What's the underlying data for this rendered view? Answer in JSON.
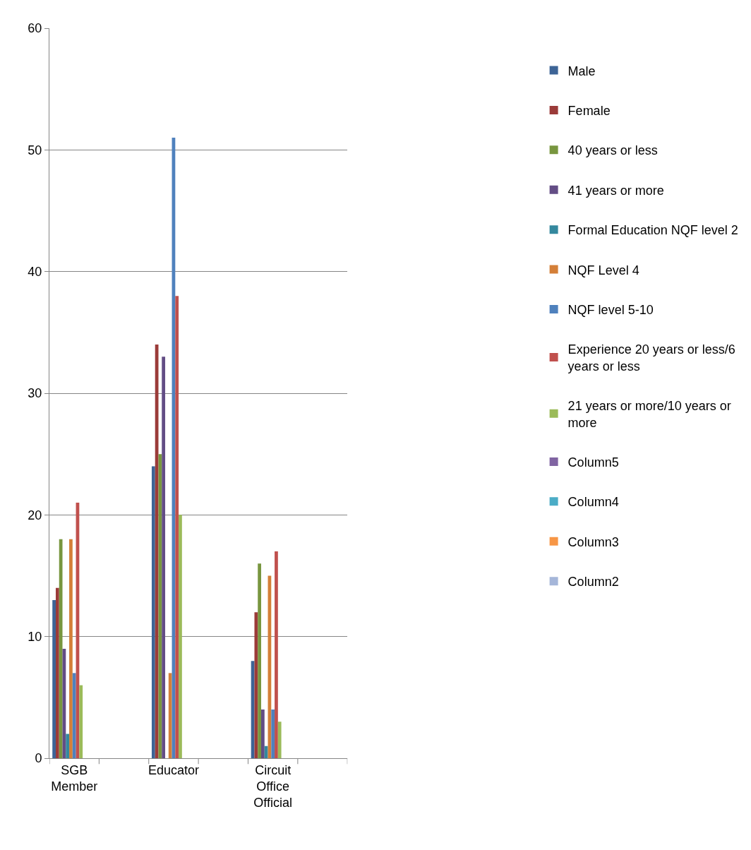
{
  "chart_data": {
    "type": "bar",
    "categories": [
      "SGB Member",
      null,
      "Educator",
      null,
      "Circuit Office Official",
      null
    ],
    "ylim": [
      0,
      60
    ],
    "yticks": [
      0,
      10,
      20,
      30,
      40,
      50,
      60
    ],
    "grid": "y",
    "legend": "right",
    "series": [
      {
        "name": "Male",
        "color": "#3d6496",
        "values": [
          13,
          null,
          24,
          null,
          8,
          null
        ]
      },
      {
        "name": "Female",
        "color": "#9b3b39",
        "values": [
          14,
          null,
          34,
          null,
          12,
          null
        ]
      },
      {
        "name": "40 years or less",
        "color": "#78963f",
        "values": [
          18,
          null,
          25,
          null,
          16,
          null
        ]
      },
      {
        "name": "41 years or more",
        "color": "#634d85",
        "values": [
          9,
          null,
          33,
          null,
          4,
          null
        ]
      },
      {
        "name": "Formal Education NQF level 2",
        "color": "#34889e",
        "values": [
          2,
          null,
          null,
          null,
          1,
          null
        ]
      },
      {
        "name": "NQF Level 4",
        "color": "#d47f38",
        "values": [
          18,
          null,
          7,
          null,
          15,
          null
        ]
      },
      {
        "name": "NQF level 5-10",
        "color": "#4f81bd",
        "values": [
          7,
          null,
          51,
          null,
          4,
          null
        ]
      },
      {
        "name": "Experience 20 years or less/6 years or less",
        "color": "#c0504d",
        "values": [
          21,
          null,
          38,
          null,
          17,
          null
        ]
      },
      {
        "name": "21 years or more/10 years or more",
        "color": "#9bbb59",
        "values": [
          6,
          null,
          20,
          null,
          3,
          null
        ]
      },
      {
        "name": "Column5",
        "color": "#8064a2",
        "values": [
          null,
          null,
          null,
          null,
          null,
          null
        ]
      },
      {
        "name": "Column4",
        "color": "#4bacc6",
        "values": [
          null,
          null,
          null,
          null,
          null,
          null
        ]
      },
      {
        "name": "Column3",
        "color": "#f79646",
        "values": [
          null,
          null,
          null,
          null,
          null,
          null
        ]
      },
      {
        "name": "Column2",
        "color": "#a5b6d9",
        "values": [
          null,
          null,
          null,
          null,
          null,
          null
        ]
      }
    ]
  }
}
